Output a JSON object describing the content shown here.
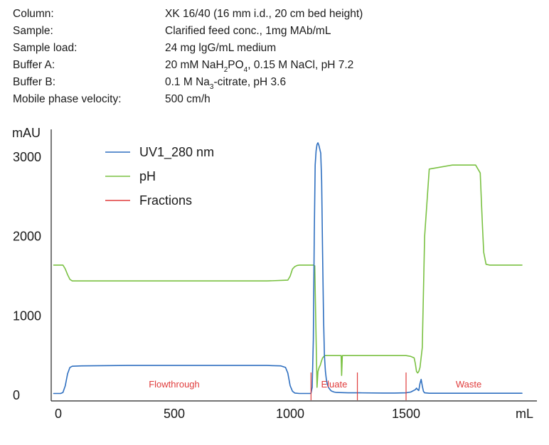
{
  "header": {
    "rows": [
      {
        "label": "Column:",
        "value": "XK 16/40 (16 mm i.d., 20 cm bed height)"
      },
      {
        "label": "Sample:",
        "value": "Clarified feed conc., 1mg MAb/mL"
      },
      {
        "label": "Sample load:",
        "value": "24 mg lgG/mL medium"
      },
      {
        "label": "Buffer A:",
        "value_parts": [
          "20 mM NaH",
          "2",
          "PO",
          "4",
          ", 0.15 M NaCl, pH 7.2"
        ]
      },
      {
        "label": "Buffer B:",
        "value_parts": [
          "0.1 M Na",
          "3",
          "-citrate, pH 3.6"
        ]
      },
      {
        "label": "Mobile phase velocity:",
        "value": "500 cm/h"
      }
    ]
  },
  "chart_data": {
    "type": "line",
    "ylabel": "mAU",
    "xlabel": "mL",
    "xlim": [
      0,
      2000
    ],
    "ylim": [
      0,
      3350
    ],
    "xticks": [
      {
        "value": 0,
        "label": "0"
      },
      {
        "value": 500,
        "label": "500"
      },
      {
        "value": 1000,
        "label": "1000"
      },
      {
        "value": 1500,
        "label": "1500"
      }
    ],
    "xtick_unit_label": "mL",
    "yticks": [
      {
        "value": 0,
        "label": "0"
      },
      {
        "value": 1000,
        "label": "1000"
      },
      {
        "value": 2000,
        "label": "2000"
      },
      {
        "value": 3000,
        "label": "3000"
      }
    ],
    "legend": [
      {
        "name": "UV1_280 nm",
        "color": "#2e6fc0"
      },
      {
        "name": "pH",
        "color": "#7ac142"
      },
      {
        "name": "Fractions",
        "color": "#e03c3c"
      }
    ],
    "series": [
      {
        "name": "UV1_280 nm",
        "color": "#2e6fc0",
        "x": [
          -20,
          10,
          20,
          30,
          40,
          50,
          60,
          100,
          300,
          500,
          700,
          900,
          960,
          980,
          990,
          1000,
          1010,
          1020,
          1040,
          1060,
          1080,
          1090,
          1095,
          1100,
          1104,
          1108,
          1112,
          1116,
          1120,
          1124,
          1128,
          1132,
          1136,
          1140,
          1144,
          1148,
          1152,
          1156,
          1160,
          1165,
          1170,
          1175,
          1180,
          1190,
          1200,
          1250,
          1300,
          1400,
          1450,
          1500,
          1520,
          1540,
          1545,
          1550,
          1555,
          1560,
          1565,
          1570,
          1575,
          1580,
          1600,
          1700,
          1800,
          1900,
          2000
        ],
        "y": [
          22,
          22,
          35,
          120,
          270,
          350,
          365,
          370,
          375,
          375,
          375,
          375,
          370,
          350,
          280,
          120,
          50,
          28,
          22,
          22,
          22,
          22,
          100,
          700,
          2000,
          2900,
          3080,
          3160,
          3180,
          3150,
          3100,
          3050,
          2700,
          1800,
          1000,
          500,
          300,
          200,
          140,
          100,
          80,
          60,
          50,
          40,
          35,
          30,
          30,
          28,
          28,
          30,
          40,
          70,
          90,
          70,
          60,
          150,
          200,
          120,
          50,
          30,
          25,
          25,
          25,
          25,
          25
        ]
      },
      {
        "name": "pH",
        "color": "#7ac142",
        "x": [
          -20,
          20,
          30,
          40,
          50,
          60,
          100,
          300,
          500,
          700,
          900,
          990,
          1000,
          1010,
          1020,
          1030,
          1040,
          1080,
          1100,
          1106,
          1110,
          1116,
          1120,
          1125,
          1130,
          1135,
          1140,
          1146,
          1150,
          1160,
          1175,
          1200,
          1220,
          1222,
          1225,
          1250,
          1300,
          1400,
          1450,
          1500,
          1520,
          1535,
          1540,
          1545,
          1550,
          1555,
          1560,
          1570,
          1580,
          1600,
          1700,
          1800,
          1820,
          1825,
          1830,
          1835,
          1845,
          1860,
          1900,
          2000
        ],
        "y": [
          1640,
          1640,
          1590,
          1520,
          1460,
          1440,
          1440,
          1440,
          1440,
          1440,
          1440,
          1450,
          1500,
          1590,
          1620,
          1635,
          1640,
          1640,
          1640,
          1630,
          1000,
          100,
          300,
          350,
          380,
          430,
          470,
          490,
          500,
          500,
          500,
          500,
          500,
          250,
          500,
          500,
          500,
          500,
          500,
          500,
          490,
          470,
          400,
          300,
          280,
          300,
          350,
          600,
          2000,
          2850,
          2900,
          2900,
          2800,
          2450,
          2100,
          1800,
          1650,
          1640,
          1640,
          1640
        ]
      }
    ],
    "fractions": {
      "color": "#e03c3c",
      "markers": [
        1090,
        1290,
        1500
      ],
      "labels": [
        {
          "text": "Flowthrough",
          "x": 500,
          "color": "#e03c3c"
        },
        {
          "text": "Eluate",
          "x": 1190,
          "color": "#e03c3c"
        },
        {
          "text": "Waste",
          "x": 1770,
          "color": "#e03c3c"
        }
      ]
    }
  }
}
